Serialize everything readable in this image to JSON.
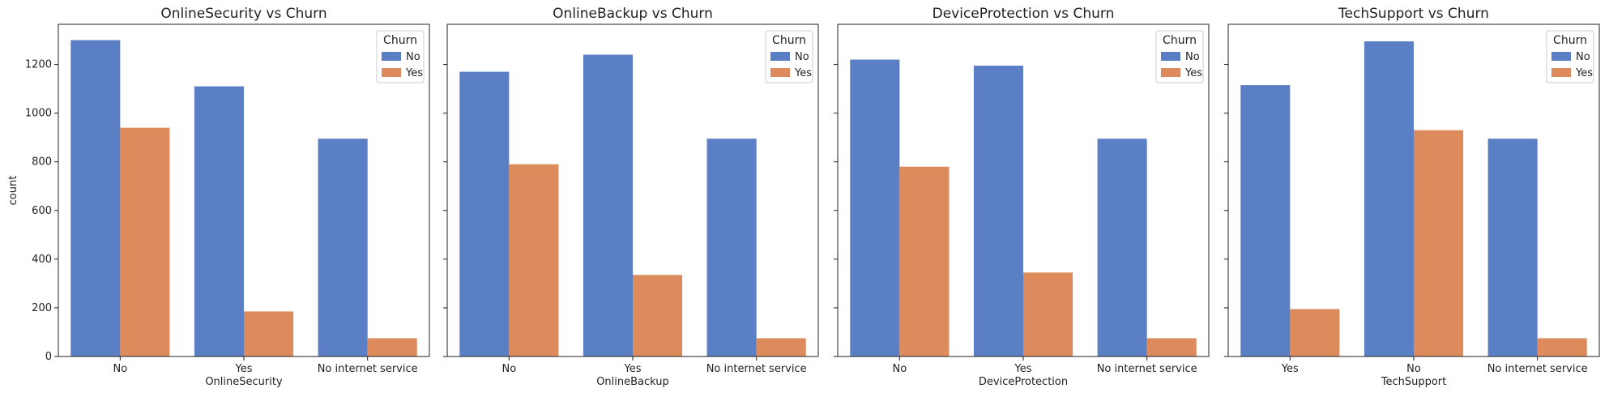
{
  "chart_data": [
    {
      "type": "bar",
      "title": "OnlineSecurity vs Churn",
      "xlabel": "OnlineSecurity",
      "ylabel": "count",
      "categories": [
        "No",
        "Yes",
        "No internet service"
      ],
      "series": [
        {
          "name": "No",
          "values": [
            1300,
            1110,
            895
          ]
        },
        {
          "name": "Yes",
          "values": [
            940,
            185,
            75
          ]
        }
      ],
      "ylim": [
        0,
        1365
      ],
      "yticks": [
        "0",
        "200",
        "400",
        "600",
        "800",
        "1000",
        "1200"
      ],
      "legend": {
        "title": "Churn",
        "placement": "top-right"
      }
    },
    {
      "type": "bar",
      "title": "OnlineBackup vs Churn",
      "xlabel": "OnlineBackup",
      "ylabel": "",
      "categories": [
        "No",
        "Yes",
        "No internet service"
      ],
      "series": [
        {
          "name": "No",
          "values": [
            1170,
            1240,
            895
          ]
        },
        {
          "name": "Yes",
          "values": [
            790,
            335,
            75
          ]
        }
      ],
      "ylim": [
        0,
        1365
      ],
      "legend": {
        "title": "Churn",
        "placement": "top-right"
      }
    },
    {
      "type": "bar",
      "title": "DeviceProtection vs Churn",
      "xlabel": "DeviceProtection",
      "ylabel": "",
      "categories": [
        "No",
        "Yes",
        "No internet service"
      ],
      "series": [
        {
          "name": "No",
          "values": [
            1220,
            1195,
            895
          ]
        },
        {
          "name": "Yes",
          "values": [
            780,
            345,
            75
          ]
        }
      ],
      "ylim": [
        0,
        1365
      ],
      "legend": {
        "title": "Churn",
        "placement": "top-right"
      }
    },
    {
      "type": "bar",
      "title": "TechSupport vs Churn",
      "xlabel": "TechSupport",
      "ylabel": "",
      "categories": [
        "Yes",
        "No",
        "No internet service"
      ],
      "series": [
        {
          "name": "No",
          "values": [
            1115,
            1295,
            895
          ]
        },
        {
          "name": "Yes",
          "values": [
            195,
            930,
            75
          ]
        }
      ],
      "ylim": [
        0,
        1365
      ],
      "legend": {
        "title": "Churn",
        "placement": "top-right"
      }
    }
  ],
  "colors": {
    "No": "#5a7fc4",
    "Yes": "#dd8a5c"
  },
  "grid": false,
  "shared_y": true
}
